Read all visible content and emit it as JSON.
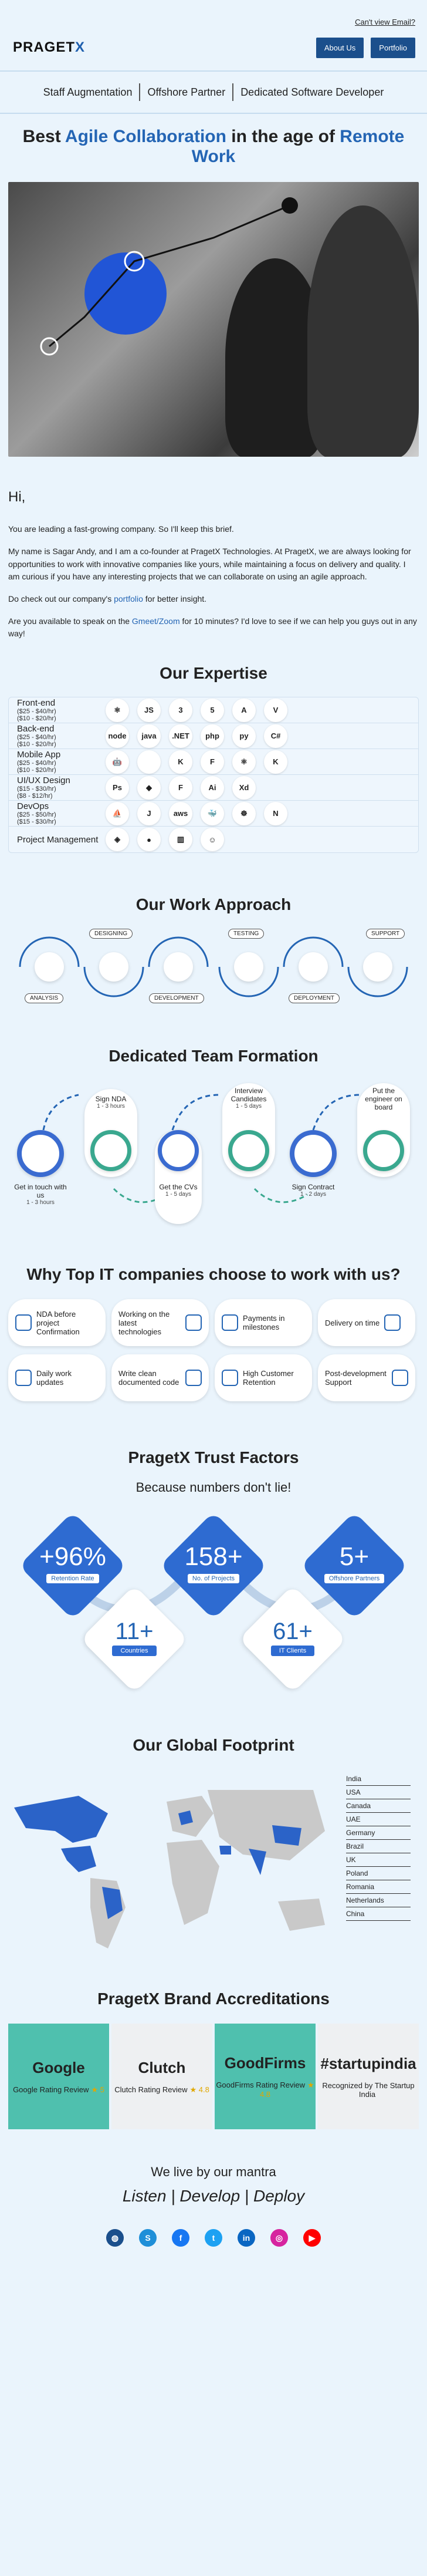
{
  "top": {
    "view_email": "Can't view Email?"
  },
  "header": {
    "logo_main": "PRAGET",
    "logo_x": "X",
    "about_label": "About Us",
    "portfolio_label": "Portfolio"
  },
  "tags": [
    "Staff Augmentation",
    "Offshore Partner",
    "Dedicated Software Developer"
  ],
  "headline": {
    "pre": "Best ",
    "blue1": "Agile Collaboration",
    "mid": " in the age of ",
    "blue2": "Remote Work"
  },
  "intro": {
    "greeting": "Hi,",
    "p1": "You are leading a fast-growing company. So I'll keep this brief.",
    "p2": "My name is Sagar Andy, and I am a co-founder at PragetX Technologies. At PragetX, we are always looking for opportunities to work with innovative companies like yours, while maintaining a focus on delivery and quality. I am curious if you have any interesting projects that we can collaborate on using an agile approach.",
    "p3_pre": "Do check out our company's ",
    "p3_link": "portfolio",
    "p3_post": " for better insight.",
    "p4_pre": "Are you available to speak on the ",
    "p4_link": "Gmeet/Zoom",
    "p4_post": " for 10 minutes? I'd love to see if we can help you guys out in any way!"
  },
  "expertise": {
    "title": "Our Expertise",
    "rows": [
      {
        "name": "Front-end",
        "rate1": "($25 - $40/hr)",
        "rate2": "($10 - $20/hr)",
        "icons": [
          "react-icon",
          "js-icon",
          "css3-icon",
          "html5-icon",
          "angular-icon",
          "vue-icon"
        ],
        "glyphs": [
          "⚛",
          "JS",
          "3",
          "5",
          "A",
          "V"
        ]
      },
      {
        "name": "Back-end",
        "rate1": "($25 - $40/hr)",
        "rate2": "($10 - $20/hr)",
        "icons": [
          "nodejs-icon",
          "java-icon",
          "dotnet-icon",
          "php-icon",
          "python-icon",
          "csharp-icon"
        ],
        "glyphs": [
          "node",
          "java",
          ".NET",
          "php",
          "py",
          "C#"
        ]
      },
      {
        "name": "Mobile App",
        "rate1": "($25 - $40/hr)",
        "rate2": "($10 - $20/hr)",
        "icons": [
          "android-icon",
          "apple-icon",
          "kotlin-icon",
          "flutter-icon",
          "react-native-icon",
          "kotlin-alt-icon"
        ],
        "glyphs": [
          "🤖",
          "",
          "K",
          "F",
          "⚛",
          "K"
        ]
      },
      {
        "name": "UI/UX Design",
        "rate1": "($15 - $30/hr)",
        "rate2": "($8 - $12/hr)",
        "icons": [
          "photoshop-icon",
          "sketch-icon",
          "figma-icon",
          "illustrator-icon",
          "xd-icon"
        ],
        "glyphs": [
          "Ps",
          "◆",
          "F",
          "Ai",
          "Xd"
        ]
      },
      {
        "name": "DevOps",
        "rate1": "($25 - $50/hr)",
        "rate2": "($15 - $30/hr)",
        "icons": [
          "azure-devops-icon",
          "jenkins-icon",
          "aws-icon",
          "docker-icon",
          "kubernetes-icon",
          "nginx-icon"
        ],
        "glyphs": [
          "⛵",
          "J",
          "aws",
          "🐳",
          "☸",
          "N"
        ]
      },
      {
        "name": "Project Management",
        "rate1": "",
        "rate2": "",
        "icons": [
          "jira-icon",
          "asana-icon",
          "trello-icon",
          "basecamp-icon"
        ],
        "glyphs": [
          "◈",
          "●",
          "▥",
          "☺"
        ]
      }
    ]
  },
  "approach": {
    "title": "Our Work Approach",
    "labels": [
      "ANALYSIS",
      "DESIGNING",
      "DEVELOPMENT",
      "TESTING",
      "DEPLOYMENT",
      "SUPPORT"
    ]
  },
  "team": {
    "title": "Dedicated Team Formation",
    "steps": [
      {
        "text": "Get in touch with us",
        "time": "1 - 3 hours"
      },
      {
        "text": "Sign NDA",
        "time": "1 - 3 hours"
      },
      {
        "text": "Get the CVs",
        "time": "1 - 5 days"
      },
      {
        "text": "Interview Candidates",
        "time": "1 - 5 days"
      },
      {
        "text": "Sign Contract",
        "time": "1 - 2 days"
      },
      {
        "text": "Put the engineer on board",
        "time": ""
      }
    ]
  },
  "why": {
    "title": "Why Top IT companies choose to work with us?",
    "cards": [
      "NDA before project Confirmation",
      "Working on the latest technologies",
      "Payments in milestones",
      "Delivery on time",
      "Daily work updates",
      "Write clean documented code",
      "High Customer Retention",
      "Post-development Support"
    ]
  },
  "trust": {
    "title": "PragetX Trust Factors",
    "subtitle": "Because numbers don't lie!",
    "items": [
      {
        "num": "+96%",
        "cap": "Retention Rate"
      },
      {
        "num": "158+",
        "cap": "No. of Projects"
      },
      {
        "num": "5+",
        "cap": "Offshore Partners"
      },
      {
        "num": "11+",
        "cap": "Countries"
      },
      {
        "num": "61+",
        "cap": "IT Clients"
      }
    ]
  },
  "footprint": {
    "title": "Our Global Footprint",
    "countries": [
      "India",
      "USA",
      "Canada",
      "UAE",
      "Germany",
      "Brazil",
      "UK",
      "Poland",
      "Romania",
      "Netherlands",
      "China"
    ]
  },
  "accred": {
    "title": "PragetX Brand Accreditations",
    "cards": [
      {
        "logo": "Google",
        "text": "Google Rating Review",
        "rating": "★ 5",
        "bg": "#4fc0ae"
      },
      {
        "logo": "Clutch",
        "text": "Clutch Rating Review",
        "rating": "★ 4.8",
        "bg": "#eef0f2"
      },
      {
        "logo": "GoodFirms",
        "text": "GoodFirms Rating Review",
        "rating": "★ 4.8",
        "bg": "#4fc0ae"
      },
      {
        "logo": "#startupindia",
        "text": "Recognized by The Startup India",
        "rating": "",
        "bg": "#eef0f2"
      }
    ]
  },
  "mantra": {
    "pre": "We live by our mantra",
    "line": "Listen | Develop | Deploy"
  },
  "socials": [
    {
      "name": "website-icon",
      "glyph": "◍",
      "color": "#1b4f8c"
    },
    {
      "name": "skype-icon",
      "glyph": "S",
      "color": "#1f8fd8"
    },
    {
      "name": "facebook-icon",
      "glyph": "f",
      "color": "#1877f2"
    },
    {
      "name": "twitter-icon",
      "glyph": "t",
      "color": "#1da1f2"
    },
    {
      "name": "linkedin-icon",
      "glyph": "in",
      "color": "#0a66c2"
    },
    {
      "name": "instagram-icon",
      "glyph": "◎",
      "color": "#d6249f"
    },
    {
      "name": "youtube-icon",
      "glyph": "▶",
      "color": "#ff0000"
    }
  ]
}
